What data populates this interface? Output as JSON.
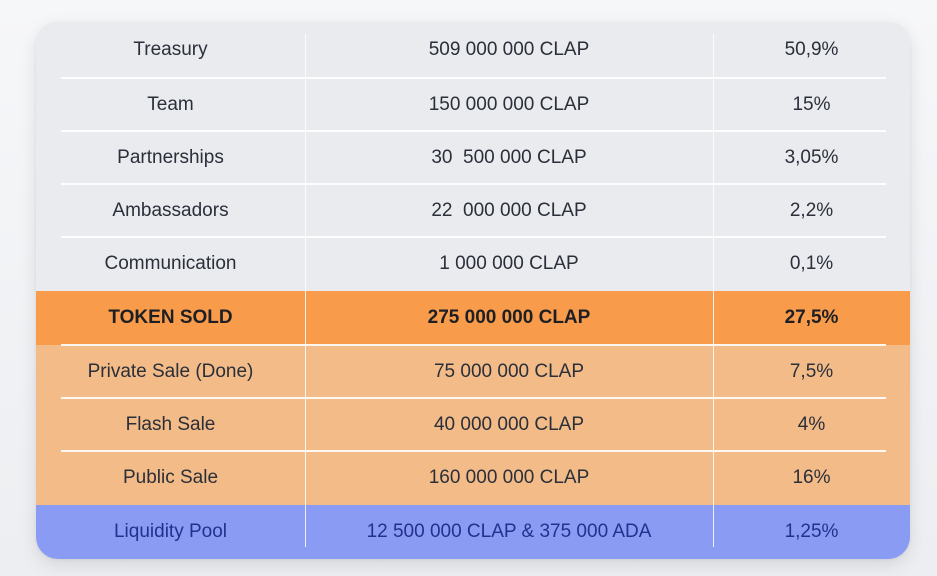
{
  "table": {
    "rows": [
      {
        "name": "Treasury",
        "amount": "509 000 000 CLAP",
        "percent": "50,9%",
        "style": "grey"
      },
      {
        "name": "Team",
        "amount": "150 000 000 CLAP",
        "percent": "15%",
        "style": "grey"
      },
      {
        "name": "Partnerships",
        "amount": "30  500 000 CLAP",
        "percent": "3,05%",
        "style": "grey"
      },
      {
        "name": "Ambassadors",
        "amount": "22  000 000 CLAP",
        "percent": "2,2%",
        "style": "grey"
      },
      {
        "name": "Communication",
        "amount": "1 000 000 CLAP",
        "percent": "0,1%",
        "style": "grey"
      },
      {
        "name": "TOKEN SOLD",
        "amount": "275 000 000 CLAP",
        "percent": "27,5%",
        "style": "orange"
      },
      {
        "name": "Private Sale (Done)",
        "amount": "75 000 000 CLAP",
        "percent": "7,5%",
        "style": "peach"
      },
      {
        "name": "Flash Sale",
        "amount": "40 000 000 CLAP",
        "percent": "4%",
        "style": "peach"
      },
      {
        "name": "Public Sale",
        "amount": "160 000 000 CLAP",
        "percent": "16%",
        "style": "peach"
      },
      {
        "name": "Liquidity Pool",
        "amount": "12 500 000 CLAP & 375 000 ADA",
        "percent": "1,25%",
        "style": "blue"
      }
    ]
  },
  "colors": {
    "grey": "#eaebee",
    "orange": "#f89b4a",
    "peach": "#f3bb87",
    "blue": "#8a9bf3",
    "text": "#2a2f3a",
    "blue_text": "#22318f"
  }
}
